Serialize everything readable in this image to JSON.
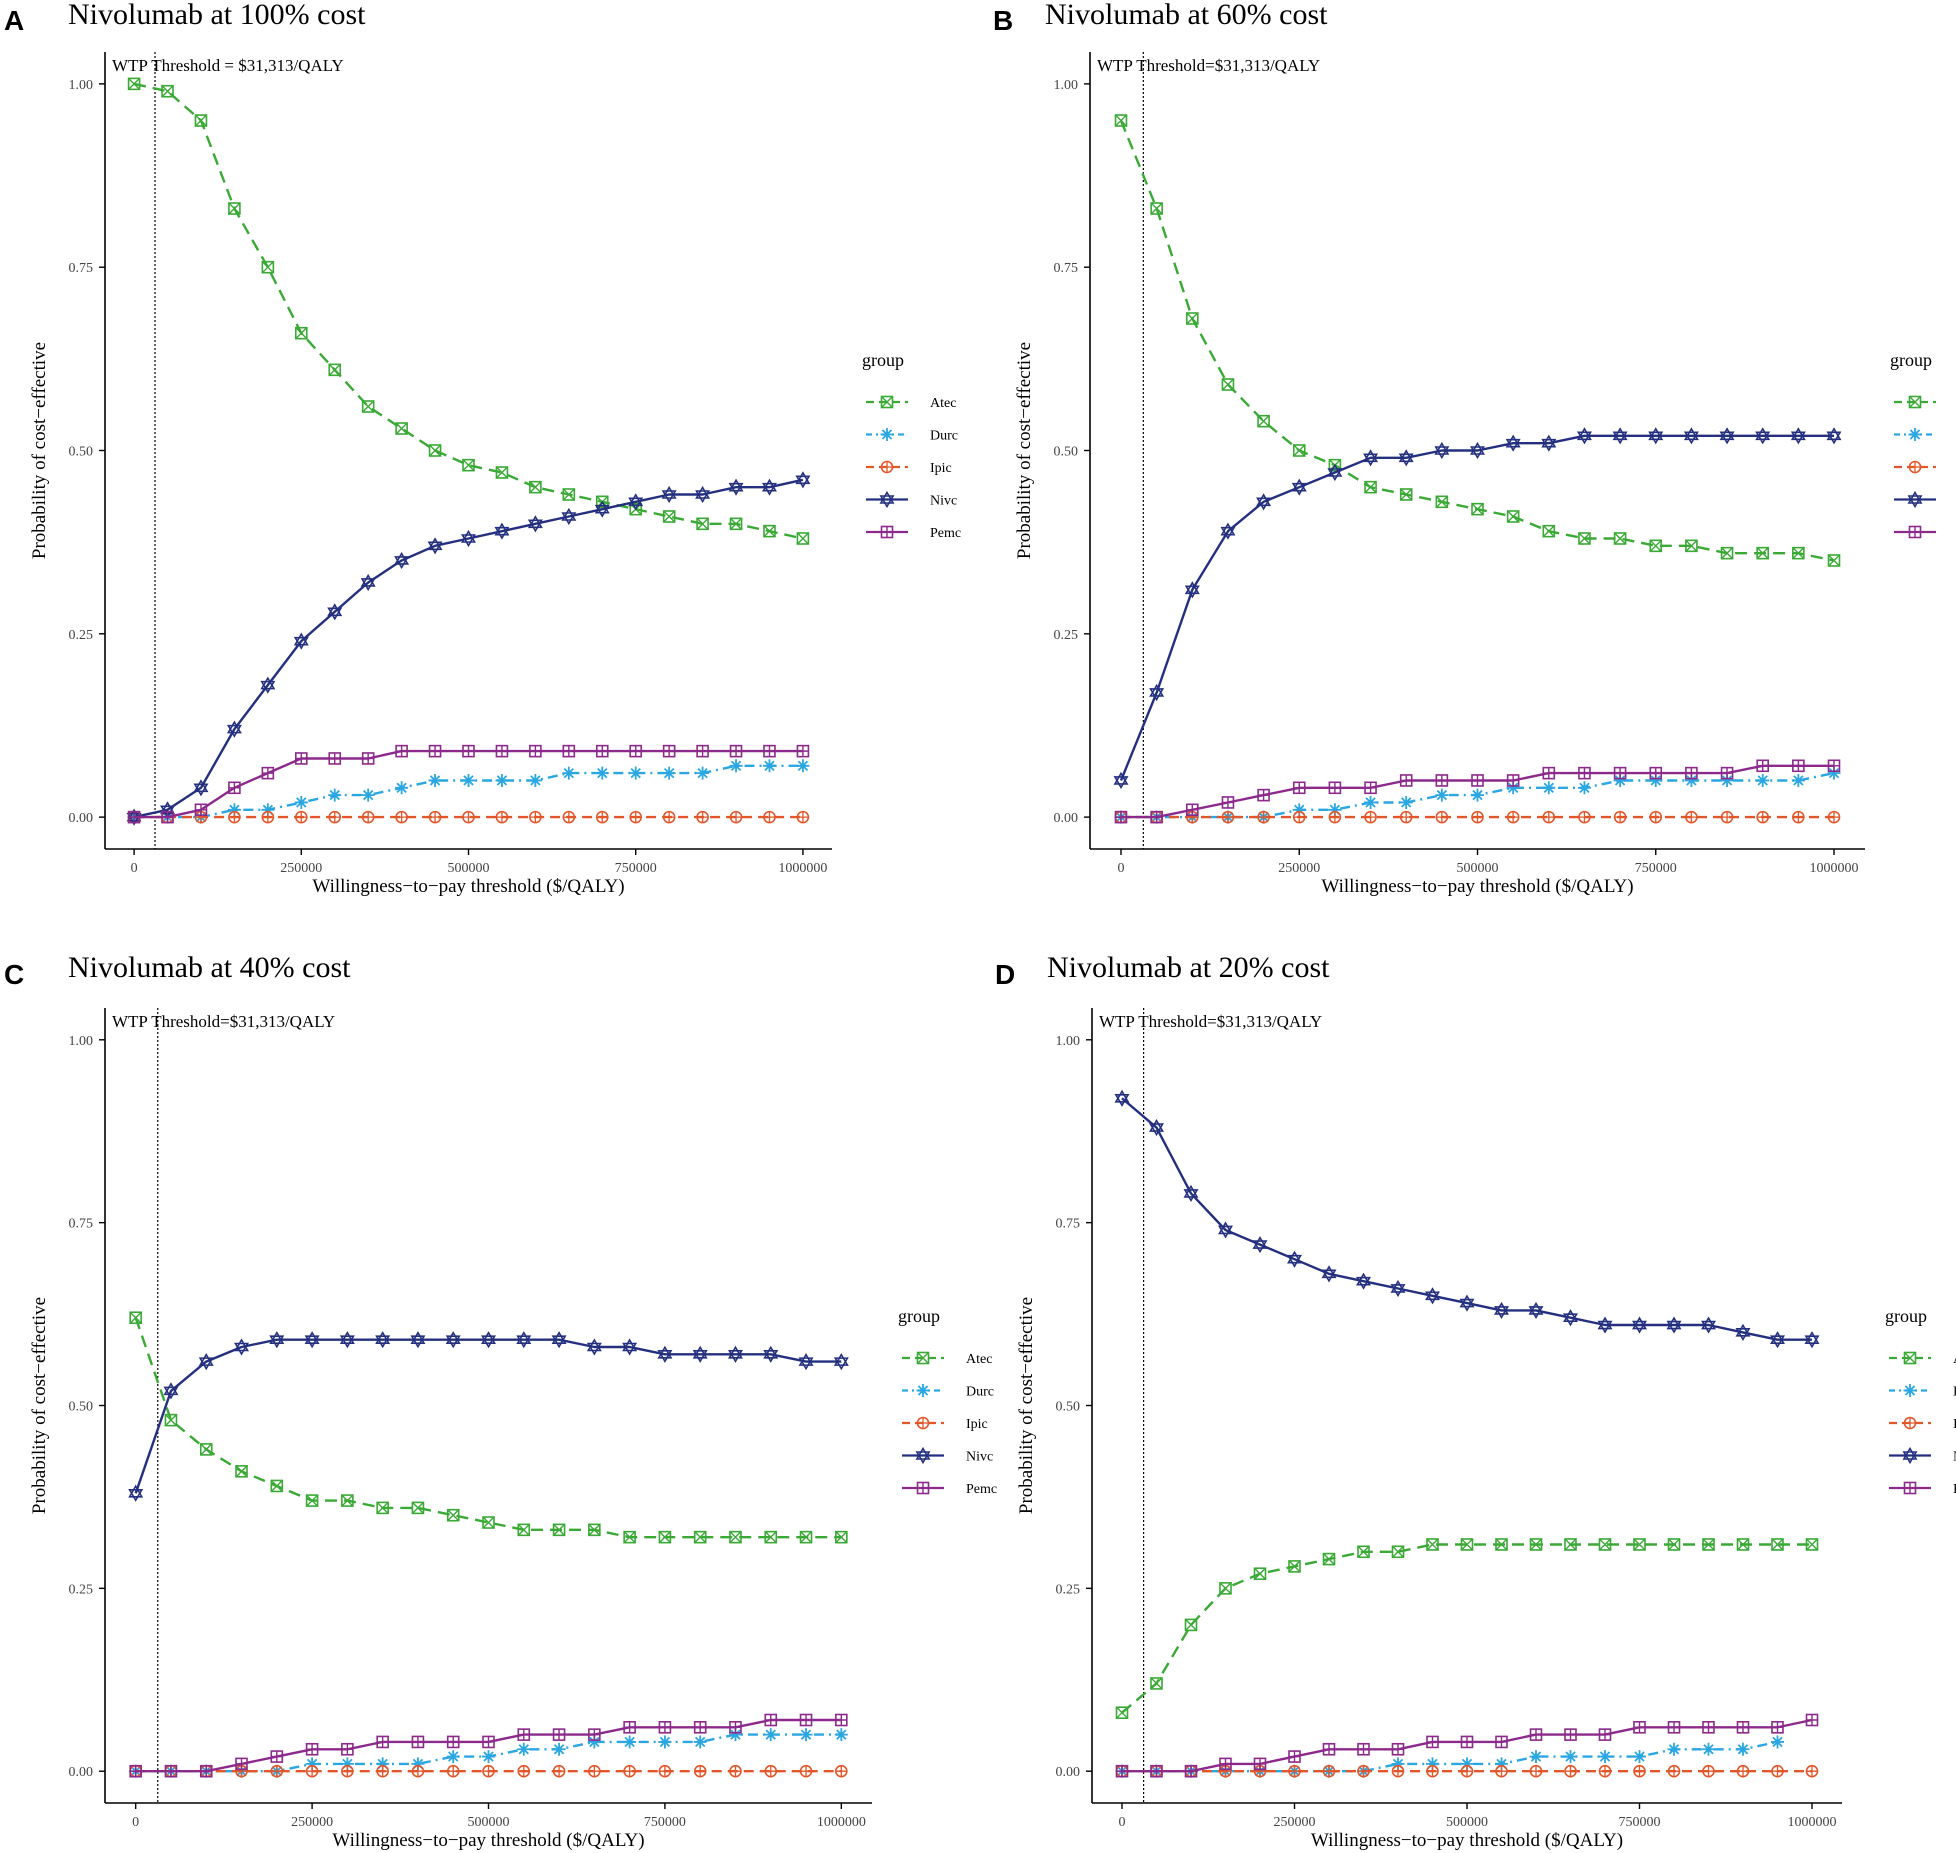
{
  "figure": {
    "x_tick_labels": [
      "0",
      "250000",
      "500000",
      "750000",
      "1000000"
    ],
    "y_tick_labels": [
      "0.00",
      "0.25",
      "0.50",
      "0.75",
      "1.00"
    ],
    "legend_title": "group",
    "colors": {
      "Atec": "#3aa935",
      "Durc": "#2aa6e0",
      "Ipic": "#e2562a",
      "Nivc": "#24307f",
      "Pemc": "#8c2a8c"
    }
  },
  "chart_data": [
    {
      "panel_label": "A",
      "type": "line",
      "title": "Nivolumab at 100% cost",
      "xlabel": "Willingness−to−pay threshold ($/QALY)",
      "ylabel": "Probability of cost−effective",
      "xlim": [
        0,
        1000000
      ],
      "ylim": [
        0,
        1
      ],
      "threshold_value": 31313,
      "threshold_label": "WTP Threshold = $31,313/QALY",
      "legend_title": "group",
      "legend_position": "right",
      "x": [
        0,
        50000,
        100000,
        150000,
        200000,
        250000,
        300000,
        350000,
        400000,
        450000,
        500000,
        550000,
        600000,
        650000,
        700000,
        750000,
        800000,
        850000,
        900000,
        950000,
        1000000
      ],
      "series": [
        {
          "name": "Atec",
          "values": [
            1.0,
            0.99,
            0.95,
            0.83,
            0.75,
            0.66,
            0.61,
            0.56,
            0.53,
            0.5,
            0.48,
            0.47,
            0.45,
            0.44,
            0.43,
            0.42,
            0.41,
            0.4,
            0.4,
            0.39,
            0.38
          ]
        },
        {
          "name": "Durc",
          "values": [
            0.0,
            0.0,
            0.0,
            0.01,
            0.01,
            0.02,
            0.03,
            0.03,
            0.04,
            0.05,
            0.05,
            0.05,
            0.05,
            0.06,
            0.06,
            0.06,
            0.06,
            0.06,
            0.07,
            0.07,
            0.07
          ]
        },
        {
          "name": "Ipic",
          "values": [
            0,
            0,
            0,
            0,
            0,
            0,
            0,
            0,
            0,
            0,
            0,
            0,
            0,
            0,
            0,
            0,
            0,
            0,
            0,
            0,
            0
          ]
        },
        {
          "name": "Nivc",
          "values": [
            0.0,
            0.01,
            0.04,
            0.12,
            0.18,
            0.24,
            0.28,
            0.32,
            0.35,
            0.37,
            0.38,
            0.39,
            0.4,
            0.41,
            0.42,
            0.43,
            0.44,
            0.44,
            0.45,
            0.45,
            0.46
          ]
        },
        {
          "name": "Pemc",
          "values": [
            0.0,
            0.0,
            0.01,
            0.04,
            0.06,
            0.08,
            0.08,
            0.08,
            0.09,
            0.09,
            0.09,
            0.09,
            0.09,
            0.09,
            0.09,
            0.09,
            0.09,
            0.09,
            0.09,
            0.09,
            0.09
          ]
        }
      ]
    },
    {
      "panel_label": "B",
      "type": "line",
      "title": "Nivolumab at 60% cost",
      "xlabel": "Willingness−to−pay threshold ($/QALY)",
      "ylabel": "Probability of cost−effective",
      "xlim": [
        0,
        1000000
      ],
      "ylim": [
        0,
        1
      ],
      "threshold_value": 31313,
      "threshold_label": "WTP Threshold=$31,313/QALY",
      "legend_title": "group",
      "legend_position": "right",
      "x": [
        0,
        50000,
        100000,
        150000,
        200000,
        250000,
        300000,
        350000,
        400000,
        450000,
        500000,
        550000,
        600000,
        650000,
        700000,
        750000,
        800000,
        850000,
        900000,
        950000,
        1000000
      ],
      "series": [
        {
          "name": "Atec",
          "values": [
            0.95,
            0.83,
            0.68,
            0.59,
            0.54,
            0.5,
            0.48,
            0.45,
            0.44,
            0.43,
            0.42,
            0.41,
            0.39,
            0.38,
            0.38,
            0.37,
            0.37,
            0.36,
            0.36,
            0.36,
            0.35
          ]
        },
        {
          "name": "Durc",
          "values": [
            0.0,
            0.0,
            0.0,
            0.0,
            0.0,
            0.01,
            0.01,
            0.02,
            0.02,
            0.03,
            0.03,
            0.04,
            0.04,
            0.04,
            0.05,
            0.05,
            0.05,
            0.05,
            0.05,
            0.05,
            0.06
          ]
        },
        {
          "name": "Ipic",
          "values": [
            0,
            0,
            0,
            0,
            0,
            0,
            0,
            0,
            0,
            0,
            0,
            0,
            0,
            0,
            0,
            0,
            0,
            0,
            0,
            0,
            0
          ]
        },
        {
          "name": "Nivc",
          "values": [
            0.05,
            0.17,
            0.31,
            0.39,
            0.43,
            0.45,
            0.47,
            0.49,
            0.49,
            0.5,
            0.5,
            0.51,
            0.51,
            0.52,
            0.52,
            0.52,
            0.52,
            0.52,
            0.52,
            0.52,
            0.52
          ]
        },
        {
          "name": "Pemc",
          "values": [
            0.0,
            0.0,
            0.01,
            0.02,
            0.03,
            0.04,
            0.04,
            0.04,
            0.05,
            0.05,
            0.05,
            0.05,
            0.06,
            0.06,
            0.06,
            0.06,
            0.06,
            0.06,
            0.07,
            0.07,
            0.07
          ]
        }
      ]
    },
    {
      "panel_label": "C",
      "type": "line",
      "title": "Nivolumab at 40% cost",
      "xlabel": "Willingness−to−pay threshold ($/QALY)",
      "ylabel": "Probability of cost−effective",
      "xlim": [
        0,
        1000000
      ],
      "ylim": [
        0,
        1
      ],
      "threshold_value": 31313,
      "threshold_label": "WTP Threshold=$31,313/QALY",
      "legend_title": "group",
      "legend_position": "right",
      "x": [
        0,
        50000,
        100000,
        150000,
        200000,
        250000,
        300000,
        350000,
        400000,
        450000,
        500000,
        550000,
        600000,
        650000,
        700000,
        750000,
        800000,
        850000,
        900000,
        950000,
        1000000
      ],
      "series": [
        {
          "name": "Atec",
          "values": [
            0.62,
            0.48,
            0.44,
            0.41,
            0.39,
            0.37,
            0.37,
            0.36,
            0.36,
            0.35,
            0.34,
            0.33,
            0.33,
            0.33,
            0.32,
            0.32,
            0.32,
            0.32,
            0.32,
            0.32,
            0.32
          ]
        },
        {
          "name": "Durc",
          "values": [
            0.0,
            0.0,
            0.0,
            0.0,
            0.0,
            0.01,
            0.01,
            0.01,
            0.01,
            0.02,
            0.02,
            0.03,
            0.03,
            0.04,
            0.04,
            0.04,
            0.04,
            0.05,
            0.05,
            0.05,
            0.05
          ]
        },
        {
          "name": "Ipic",
          "values": [
            0,
            0,
            0,
            0,
            0,
            0,
            0,
            0,
            0,
            0,
            0,
            0,
            0,
            0,
            0,
            0,
            0,
            0,
            0,
            0,
            0
          ]
        },
        {
          "name": "Nivc",
          "values": [
            0.38,
            0.52,
            0.56,
            0.58,
            0.59,
            0.59,
            0.59,
            0.59,
            0.59,
            0.59,
            0.59,
            0.59,
            0.59,
            0.58,
            0.58,
            0.57,
            0.57,
            0.57,
            0.57,
            0.56,
            0.56
          ]
        },
        {
          "name": "Pemc",
          "values": [
            0.0,
            0.0,
            0.0,
            0.01,
            0.02,
            0.03,
            0.03,
            0.04,
            0.04,
            0.04,
            0.04,
            0.05,
            0.05,
            0.05,
            0.06,
            0.06,
            0.06,
            0.06,
            0.07,
            0.07,
            0.07
          ]
        }
      ]
    },
    {
      "panel_label": "D",
      "type": "line",
      "title": "Nivolumab at 20% cost",
      "xlabel": "Willingness−to−pay threshold ($/QALY)",
      "ylabel": "Probability of cost−effective",
      "xlim": [
        0,
        1000000
      ],
      "ylim": [
        0,
        1
      ],
      "threshold_value": 31313,
      "threshold_label": "WTP Threshold=$31,313/QALY",
      "legend_title": "group",
      "legend_position": "right",
      "x": [
        0,
        50000,
        100000,
        150000,
        200000,
        250000,
        300000,
        350000,
        400000,
        450000,
        500000,
        550000,
        600000,
        650000,
        700000,
        750000,
        800000,
        850000,
        900000,
        950000,
        1000000
      ],
      "series": [
        {
          "name": "Atec",
          "values": [
            0.08,
            0.12,
            0.2,
            0.25,
            0.27,
            0.28,
            0.29,
            0.3,
            0.3,
            0.31,
            0.31,
            0.31,
            0.31,
            0.31,
            0.31,
            0.31,
            0.31,
            0.31,
            0.31,
            0.31,
            0.31
          ]
        },
        {
          "name": "Durc",
          "values": [
            0.0,
            0.0,
            0.0,
            0.0,
            0.0,
            0.0,
            0.0,
            0.0,
            0.01,
            0.01,
            0.01,
            0.01,
            0.02,
            0.02,
            0.02,
            0.02,
            0.03,
            0.03,
            0.03,
            0.04,
            null
          ]
        },
        {
          "name": "Ipic",
          "values": [
            0,
            0,
            0,
            0,
            0,
            0,
            0,
            0,
            0,
            0,
            0,
            0,
            0,
            0,
            0,
            0,
            0,
            0,
            0,
            0,
            0
          ]
        },
        {
          "name": "Nivc",
          "values": [
            0.92,
            0.88,
            0.79,
            0.74,
            0.72,
            0.7,
            0.68,
            0.67,
            0.66,
            0.65,
            0.64,
            0.63,
            0.63,
            0.62,
            0.61,
            0.61,
            0.61,
            0.61,
            0.6,
            0.59,
            0.59
          ]
        },
        {
          "name": "Pemc",
          "values": [
            0.0,
            0.0,
            0.0,
            0.01,
            0.01,
            0.02,
            0.03,
            0.03,
            0.03,
            0.04,
            0.04,
            0.04,
            0.05,
            0.05,
            0.05,
            0.06,
            0.06,
            0.06,
            0.06,
            0.06,
            0.07
          ]
        }
      ]
    }
  ]
}
